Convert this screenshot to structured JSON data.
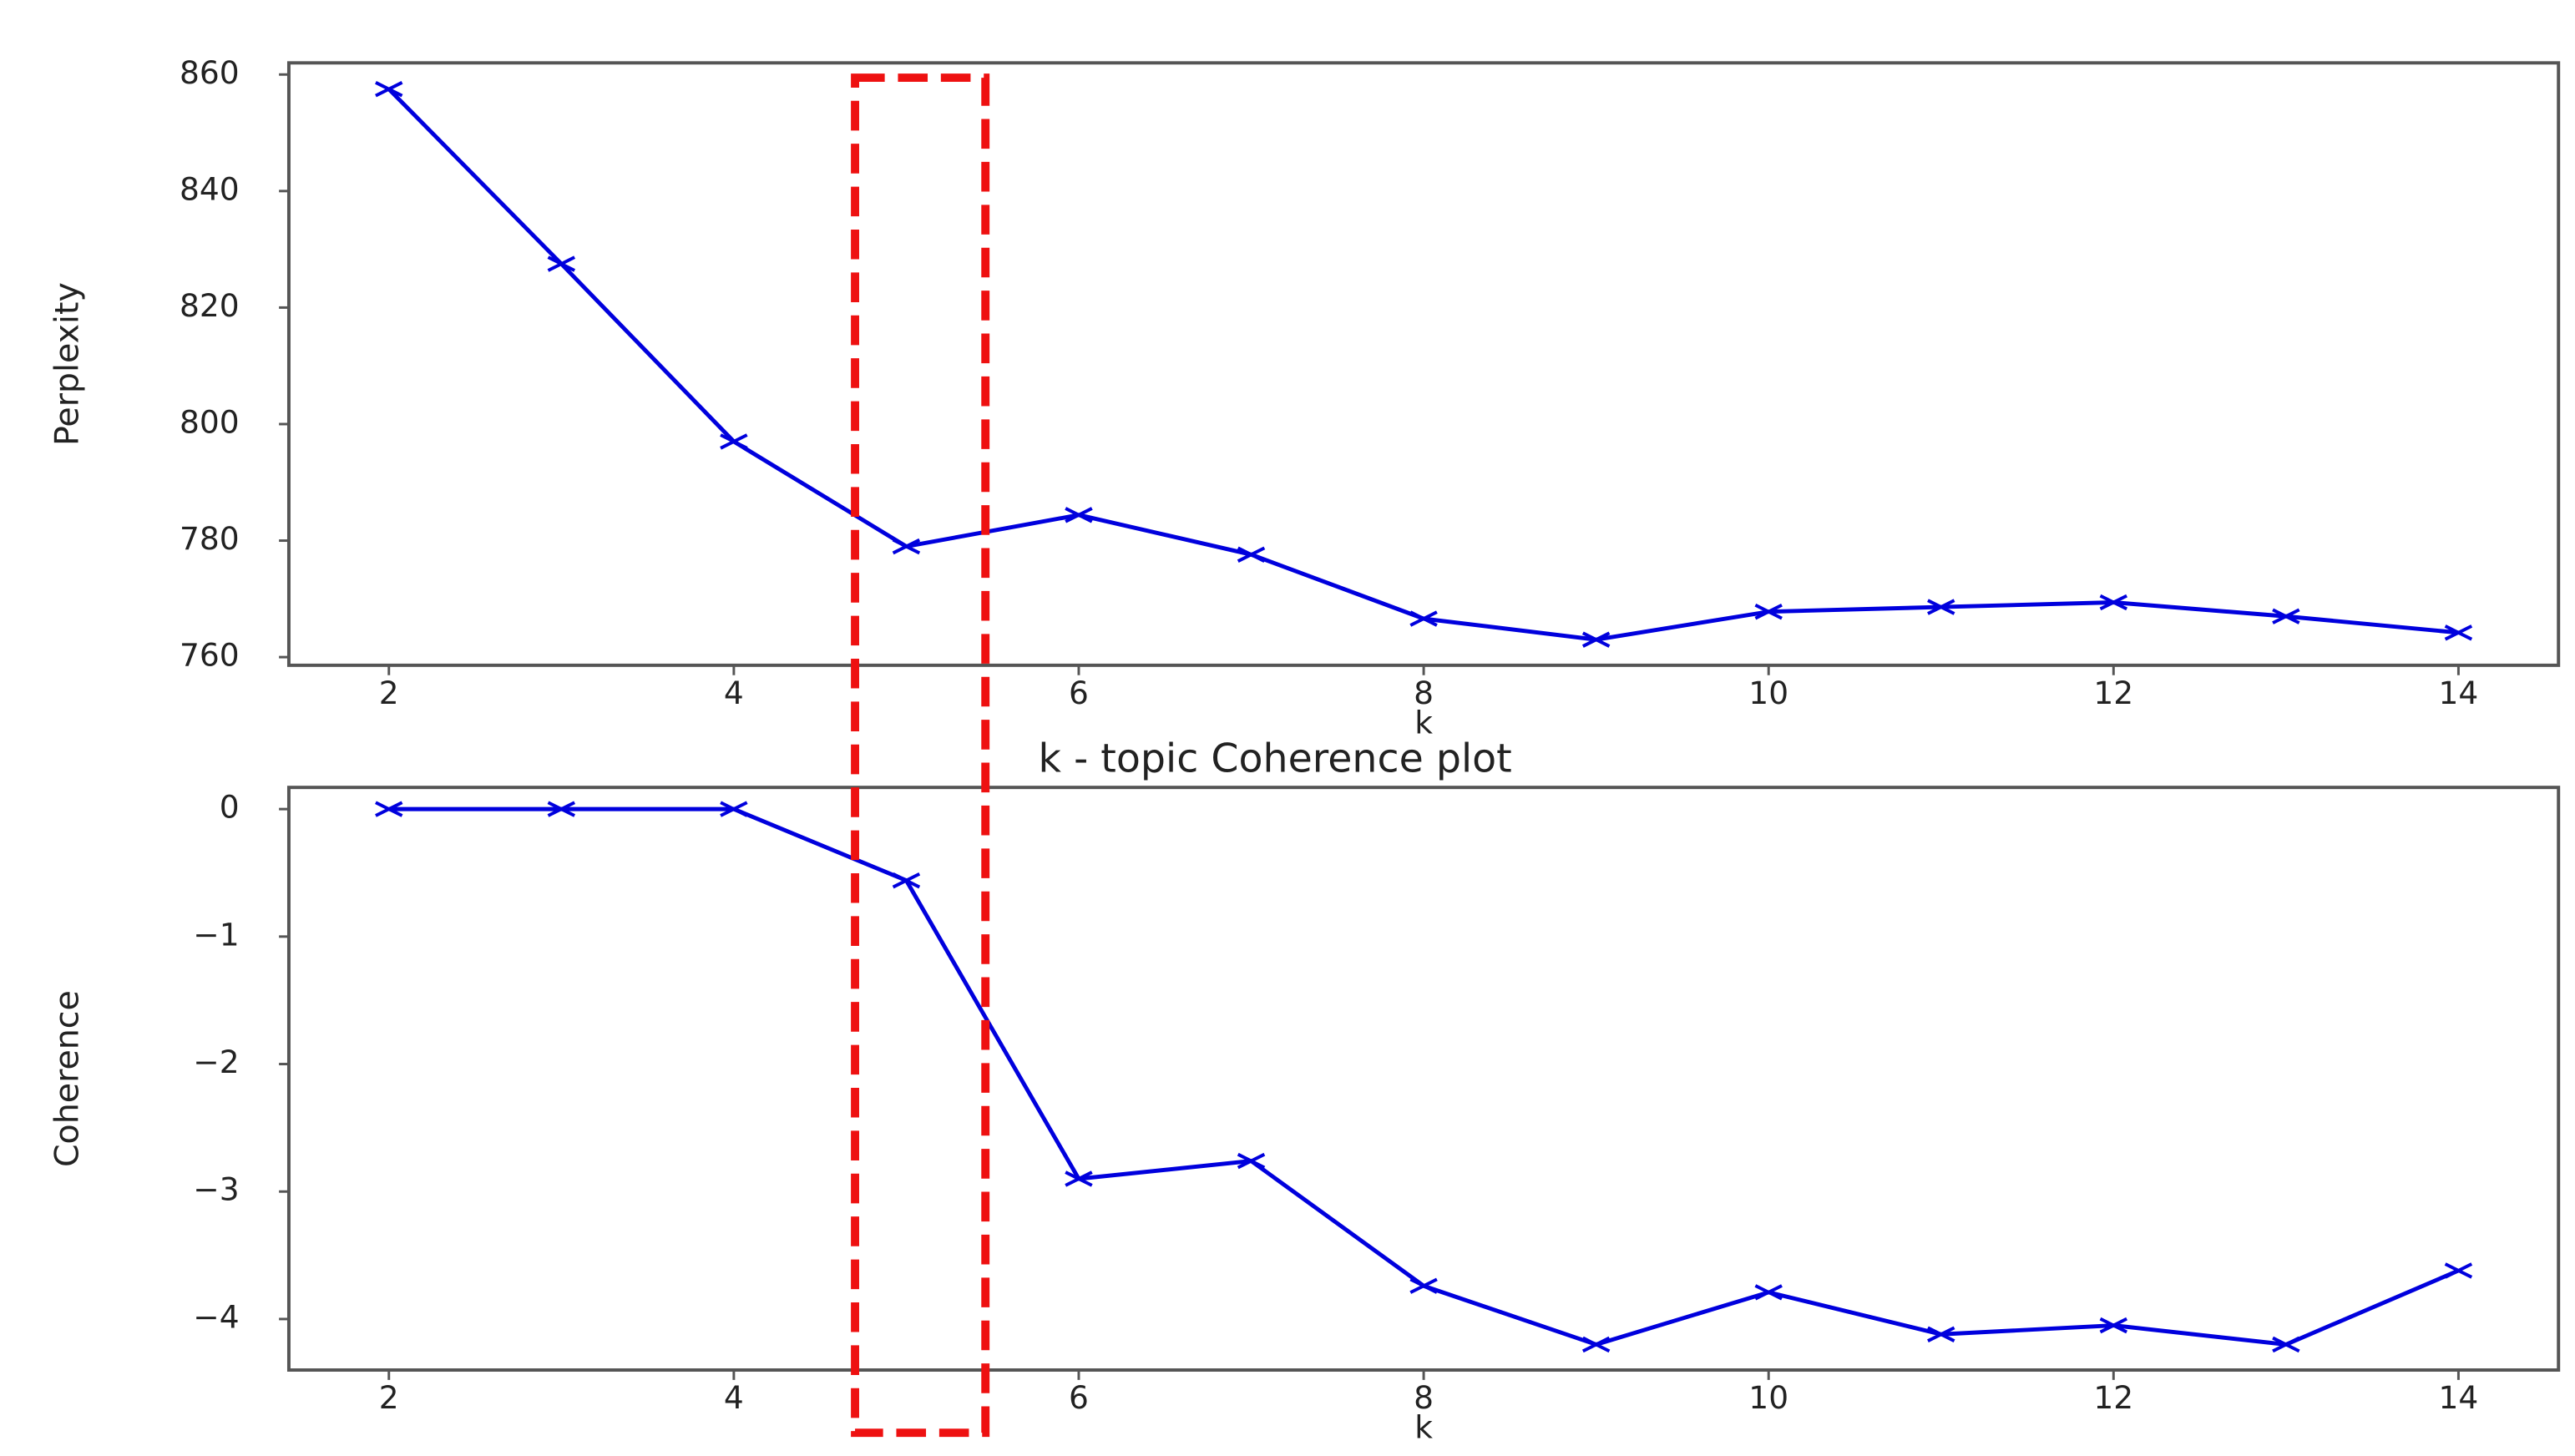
{
  "chart_data": [
    {
      "type": "line",
      "ylabel": "Perplexity",
      "xlabel": "k",
      "x": [
        2,
        3,
        4,
        5,
        6,
        7,
        8,
        9,
        10,
        11,
        12,
        13,
        14
      ],
      "values": [
        857.5,
        827.5,
        797,
        779,
        784.4,
        777.6,
        766.6,
        763,
        767.8,
        768.6,
        769.4,
        767,
        764.2
      ],
      "color": "#0000dd",
      "marker": "x",
      "xlim": [
        1.42,
        14.58
      ],
      "xticks": [
        2,
        4,
        6,
        8,
        10,
        12,
        14
      ],
      "ylim": [
        758.6,
        862
      ],
      "yticks": [
        760,
        780,
        800,
        820,
        840,
        860
      ]
    },
    {
      "type": "line",
      "title": "k - topic Coherence plot",
      "ylabel": "Coherence",
      "xlabel": "k",
      "x": [
        2,
        3,
        4,
        5,
        6,
        7,
        8,
        9,
        10,
        11,
        12,
        13,
        14
      ],
      "values": [
        0,
        0,
        0,
        -0.56,
        -2.9,
        -2.76,
        -3.74,
        -4.2,
        -3.79,
        -4.12,
        -4.05,
        -4.2,
        -3.62
      ],
      "color": "#0000dd",
      "marker": "x",
      "xlim": [
        1.42,
        14.58
      ],
      "xticks": [
        2,
        4,
        6,
        8,
        10,
        12,
        14
      ],
      "ylim": [
        -4.4,
        0.17
      ],
      "yticks": [
        {
          "value": 0,
          "label": "0"
        },
        {
          "value": -1,
          "label": "−1"
        },
        {
          "value": -2,
          "label": "−2"
        },
        {
          "value": -3,
          "label": "−3"
        },
        {
          "value": -4,
          "label": "−4"
        }
      ]
    }
  ]
}
